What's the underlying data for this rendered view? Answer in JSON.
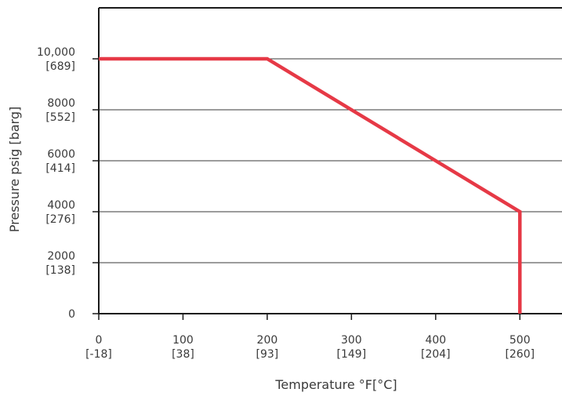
{
  "chart_data": {
    "type": "line",
    "xlabel": "Temperature °F[°C]",
    "ylabel": "Pressure psig [barg]",
    "xlim": [
      0,
      550
    ],
    "ylim": [
      0,
      12000
    ],
    "grid": "horizontal",
    "x_ticks": [
      {
        "value": 0,
        "line1": "0",
        "line2": "[-18]"
      },
      {
        "value": 100,
        "line1": "100",
        "line2": "[38]"
      },
      {
        "value": 200,
        "line1": "200",
        "line2": "[93]"
      },
      {
        "value": 300,
        "line1": "300",
        "line2": "[149]"
      },
      {
        "value": 400,
        "line1": "400",
        "line2": "[204]"
      },
      {
        "value": 500,
        "line1": "500",
        "line2": "[260]"
      }
    ],
    "y_ticks": [
      {
        "value": 0,
        "line1": "0",
        "line2": ""
      },
      {
        "value": 2000,
        "line1": "2000",
        "line2": "[138]"
      },
      {
        "value": 4000,
        "line1": "4000",
        "line2": "[276]"
      },
      {
        "value": 6000,
        "line1": "6000",
        "line2": "[414]"
      },
      {
        "value": 8000,
        "line1": "8000",
        "line2": "[552]"
      },
      {
        "value": 10000,
        "line1": "10,000",
        "line2": "[689]"
      }
    ],
    "series": [
      {
        "color": "#e63946",
        "points": [
          {
            "x": 0,
            "y": 10000
          },
          {
            "x": 200,
            "y": 10000
          },
          {
            "x": 300,
            "y": 8000
          },
          {
            "x": 400,
            "y": 6000
          },
          {
            "x": 500,
            "y": 4000
          },
          {
            "x": 500,
            "y": 0
          }
        ]
      }
    ]
  }
}
